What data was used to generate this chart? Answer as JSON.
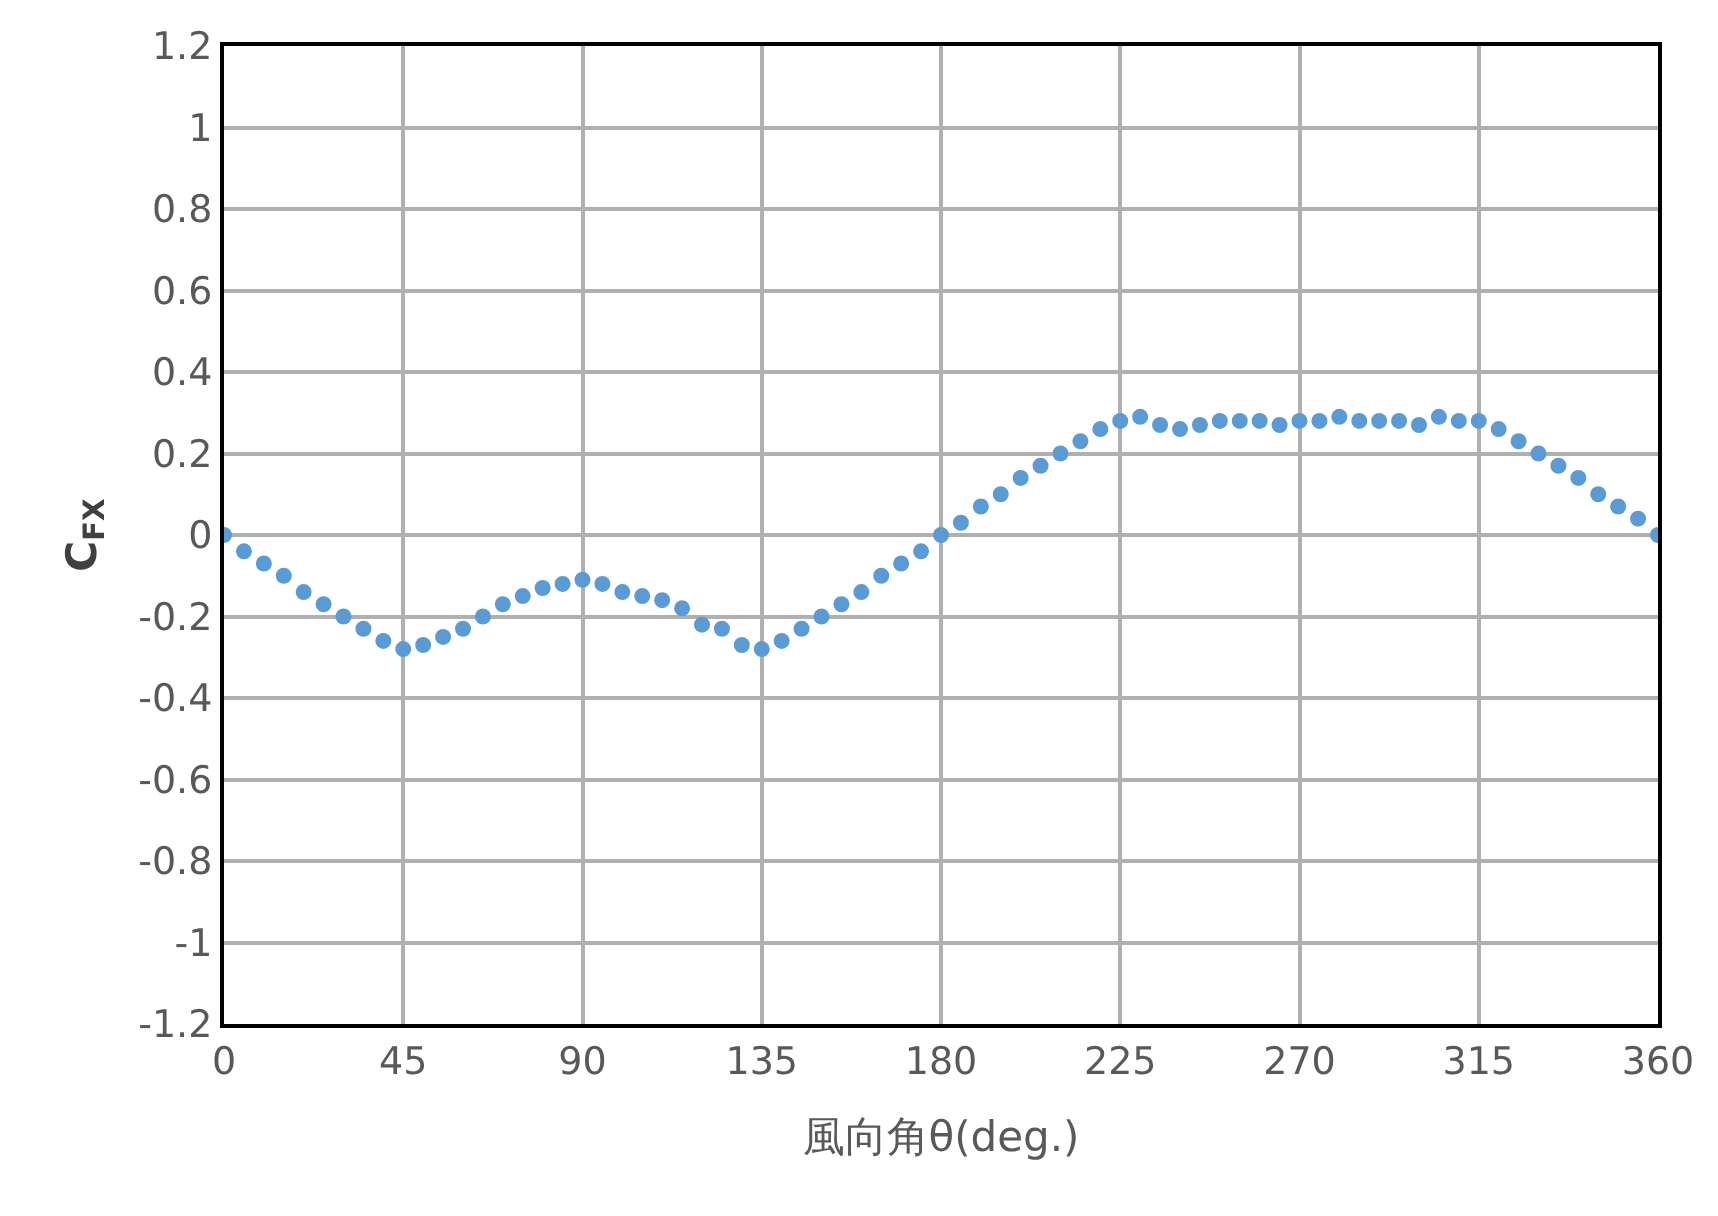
{
  "chart_data": {
    "type": "scatter",
    "xlabel": "風向角θ(deg.)",
    "ylabel": "C$_{FX}$",
    "x": [
      0,
      5,
      10,
      15,
      20,
      25,
      30,
      35,
      40,
      45,
      50,
      55,
      60,
      65,
      70,
      75,
      80,
      85,
      90,
      95,
      100,
      105,
      110,
      115,
      120,
      125,
      130,
      135,
      140,
      145,
      150,
      155,
      160,
      165,
      170,
      175,
      180,
      185,
      190,
      195,
      200,
      205,
      210,
      215,
      220,
      225,
      230,
      235,
      240,
      245,
      250,
      255,
      260,
      265,
      270,
      275,
      280,
      285,
      290,
      295,
      300,
      305,
      310,
      315,
      320,
      325,
      330,
      335,
      340,
      345,
      350,
      355,
      360
    ],
    "series": [
      {
        "color": "#5b9bd5",
        "values": [
          0,
          -0.04,
          -0.07,
          -0.1,
          -0.14,
          -0.17,
          -0.2,
          -0.23,
          -0.26,
          -0.28,
          -0.27,
          -0.25,
          -0.23,
          -0.2,
          -0.17,
          -0.15,
          -0.13,
          -0.12,
          -0.11,
          -0.12,
          -0.14,
          -0.15,
          -0.16,
          -0.18,
          -0.22,
          -0.23,
          -0.27,
          -0.28,
          -0.26,
          -0.23,
          -0.2,
          -0.17,
          -0.14,
          -0.1,
          -0.07,
          -0.04,
          0,
          0.03,
          0.07,
          0.1,
          0.14,
          0.17,
          0.2,
          0.23,
          0.26,
          0.28,
          0.29,
          0.27,
          0.26,
          0.27,
          0.28,
          0.28,
          0.28,
          0.27,
          0.28,
          0.28,
          0.29,
          0.28,
          0.28,
          0.28,
          0.27,
          0.29,
          0.28,
          0.28,
          0.26,
          0.23,
          0.2,
          0.17,
          0.14,
          0.1,
          0.07,
          0.04,
          0
        ]
      }
    ],
    "xlim": [
      0,
      360
    ],
    "xticks": [
      0,
      45,
      90,
      135,
      180,
      225,
      270,
      315,
      360
    ],
    "ylim": [
      -1.2,
      1.2
    ],
    "yticks": [
      -1.2,
      -1,
      -0.8,
      -0.6,
      -0.4,
      -0.2,
      0,
      0.2,
      0.4,
      0.6,
      0.8,
      1,
      1.2
    ],
    "grid": true,
    "marker": "circle"
  }
}
